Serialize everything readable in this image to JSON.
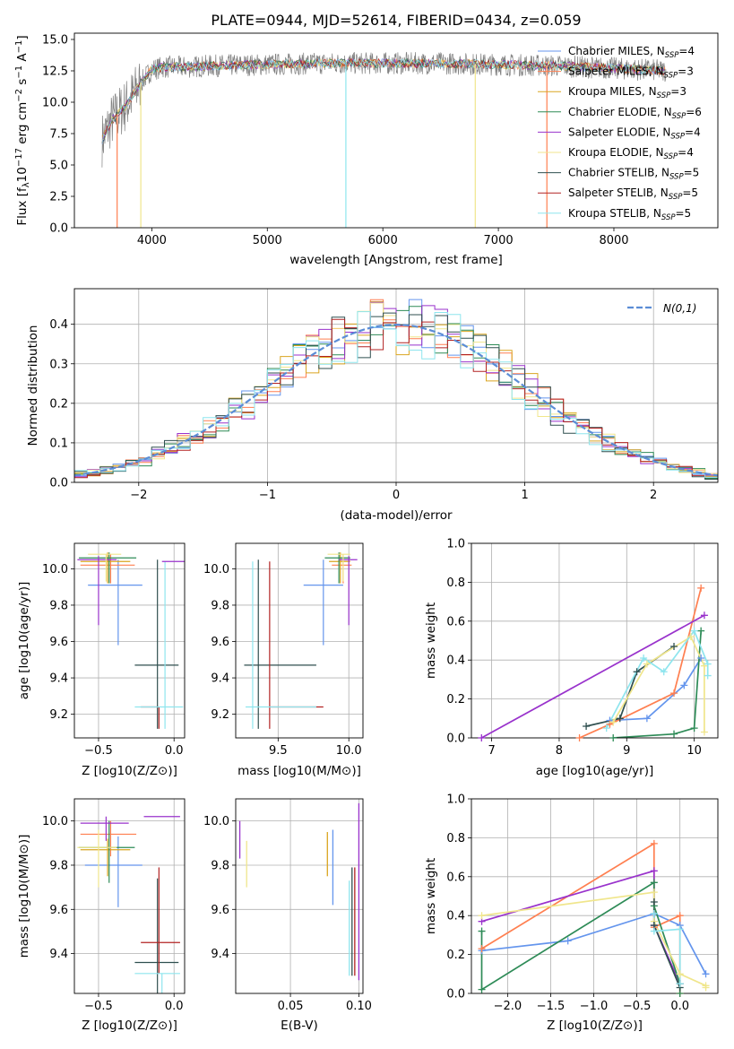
{
  "figure": {
    "title": "PLATE=0944, MJD=52614, FIBERID=0434, z=0.059",
    "models": [
      {
        "name": "Chabrier MILES, N$_{SSP}$=4",
        "label": "Chabrier MILES, N",
        "n": "=4",
        "color": "#6495ed"
      },
      {
        "name": "Salpeter MILES, N$_{SSP}$=3",
        "label": "Salpeter MILES, N",
        "n": "=3",
        "color": "#ff7f50"
      },
      {
        "name": "Kroupa MILES, N$_{SSP}$=3",
        "label": "Kroupa MILES, N",
        "n": "=3",
        "color": "#daa520"
      },
      {
        "name": "Chabrier ELODIE, N$_{SSP}$=6",
        "label": "Chabrier ELODIE, N",
        "n": "=6",
        "color": "#2e8b57"
      },
      {
        "name": "Salpeter ELODIE, N$_{SSP}$=4",
        "label": "Salpeter ELODIE, N",
        "n": "=4",
        "color": "#9932cc"
      },
      {
        "name": "Kroupa ELODIE, N$_{SSP}$=4",
        "label": "Kroupa ELODIE, N",
        "n": "=4",
        "color": "#f0e68c"
      },
      {
        "name": "Chabrier STELIB, N$_{SSP}$=5",
        "label": "Chabrier STELIB, N",
        "n": "=5",
        "color": "#2f4f4f"
      },
      {
        "name": "Salpeter STELIB, N$_{SSP}$=5",
        "label": "Salpeter STELIB, N",
        "n": "=5",
        "color": "#b22222"
      },
      {
        "name": "Kroupa STELIB, N$_{SSP}$=5",
        "label": "Kroupa STELIB, N",
        "n": "=5",
        "color": "#8ee5ee"
      }
    ],
    "ssp_sub": "SSP"
  },
  "chart_data": [
    {
      "type": "line",
      "panel": "spectrum",
      "title": "PLATE=0944, MJD=52614, FIBERID=0434, z=0.059",
      "xlabel": "wavelength [Angstrom, rest frame]",
      "ylabel": "Flux [f_λ10^-17 erg cm^-2 s^-1 A^-1]",
      "xlim": [
        3330,
        8900
      ],
      "ylim": [
        0,
        15.5
      ],
      "xticks": [
        4000,
        5000,
        6000,
        7000,
        8000
      ],
      "yticks": [
        0.0,
        2.5,
        5.0,
        7.5,
        10.0,
        12.5,
        15.0
      ],
      "ytick_labels": [
        "0.0",
        "2.5",
        "5.0",
        "7.5",
        "10.0",
        "12.5",
        "15.0"
      ],
      "data_color": "#808080",
      "x_range": [
        3570,
        8450
      ],
      "continuum": {
        "x": [
          3570,
          3650,
          3800,
          3900,
          4000,
          4100,
          4300,
          4500,
          5000,
          5500,
          6000,
          6500,
          7000,
          7500,
          8000,
          8450
        ],
        "y": [
          7.0,
          8.5,
          10.0,
          11.5,
          12.6,
          12.8,
          12.8,
          12.9,
          13.0,
          13.1,
          13.1,
          13.1,
          13.0,
          12.9,
          12.7,
          12.5
        ]
      },
      "dips": [
        {
          "x": 3700,
          "model": 1
        },
        {
          "x": 3905,
          "model": 5
        },
        {
          "x": 5680,
          "model": 8
        },
        {
          "x": 6800,
          "model": 5
        },
        {
          "x": 7420,
          "model": 1
        }
      ],
      "legend": "upper right",
      "grid": false
    },
    {
      "type": "line",
      "panel": "residual-histogram",
      "xlabel": "(data-model)/error",
      "ylabel": "Normed distribution",
      "xlim": [
        -2.5,
        2.5
      ],
      "ylim": [
        0,
        0.49
      ],
      "xticks": [
        -2,
        -1,
        0,
        1,
        2
      ],
      "xtick_labels": [
        "−2",
        "−1",
        "0",
        "1",
        "2"
      ],
      "yticks": [
        0.0,
        0.1,
        0.2,
        0.3,
        0.4
      ],
      "ytick_labels": [
        "0.0",
        "0.1",
        "0.2",
        "0.3",
        "0.4"
      ],
      "bin_width": 0.1,
      "gaussian": {
        "label": "N(0,1)",
        "color": "#5b8dd6",
        "mu": 0,
        "sigma": 1
      },
      "grid": true,
      "legend": "upper right"
    },
    {
      "type": "scatter",
      "panel": "age-vs-Z",
      "xlabel": "Z [log10(Z/Z⊙)]",
      "ylabel": "age [log10(age/yr)]",
      "xlim": [
        -0.66,
        0.07
      ],
      "ylim": [
        9.07,
        10.14
      ],
      "xticks": [
        -0.5,
        0.0
      ],
      "xtick_labels": [
        "−0.5",
        "0.0"
      ],
      "yticks": [
        9.2,
        9.4,
        9.6,
        9.8,
        10.0
      ],
      "ytick_labels": [
        "9.2",
        "9.4",
        "9.6",
        "9.8",
        "10.0"
      ],
      "points": [
        {
          "model": 0,
          "x": -0.37,
          "y": 9.91,
          "xerr": [
            0.2,
            0.16
          ],
          "yerr": [
            0.33,
            0.14
          ]
        },
        {
          "model": 1,
          "x": -0.42,
          "y": 10.02,
          "xerr": [
            0.2,
            0.16
          ],
          "yerr": [
            0.1,
            0.06
          ]
        },
        {
          "model": 2,
          "x": -0.44,
          "y": 10.04,
          "xerr": [
            0.18,
            0.15
          ],
          "yerr": [
            0.12,
            0.05
          ]
        },
        {
          "model": 3,
          "x": -0.43,
          "y": 10.06,
          "xerr": [
            0.2,
            0.18
          ],
          "yerr": [
            0.14,
            0.03
          ]
        },
        {
          "model": 4,
          "x": -0.5,
          "y": 10.05,
          "xerr": [
            0.14,
            0.12
          ],
          "yerr": [
            0.36,
            0.02
          ]
        },
        {
          "model": 5,
          "x": -0.45,
          "y": 10.08,
          "xerr": [
            0.12,
            0.1
          ],
          "yerr": [
            0.15,
            0.0
          ]
        },
        {
          "model": 6,
          "x": -0.11,
          "y": 9.47,
          "xerr": [
            0.15,
            0.14
          ],
          "yerr": [
            0.35,
            0.58
          ]
        },
        {
          "model": 7,
          "x": -0.1,
          "y": 9.24,
          "xerr": [
            0.12,
            0.0
          ],
          "yerr": [
            0.12,
            0.0
          ]
        },
        {
          "model": 8,
          "x": -0.06,
          "y": 9.24,
          "xerr": [
            0.2,
            0.12
          ],
          "yerr": [
            0.12,
            0.8
          ]
        },
        {
          "model": 4,
          "x": -0.08,
          "y": 10.04,
          "xerr": [
            0.0,
            0.15
          ],
          "yerr": [
            0.0,
            0.0
          ]
        }
      ],
      "grid": true
    },
    {
      "type": "scatter",
      "panel": "age-vs-mass",
      "xlabel": "mass [log10(M/M⊙)]",
      "ylabel": "",
      "xlim": [
        9.2,
        10.1
      ],
      "ylim": [
        9.07,
        10.14
      ],
      "xticks": [
        9.5,
        10.0
      ],
      "xtick_labels": [
        "9.5",
        "10.0"
      ],
      "yticks": [
        9.2,
        9.4,
        9.6,
        9.8,
        10.0
      ],
      "ytick_labels": [
        "9.2",
        "9.4",
        "9.6",
        "9.8",
        "10.0"
      ],
      "points": [
        {
          "model": 0,
          "x": 9.82,
          "y": 9.91,
          "xerr": [
            0.14,
            0.14
          ],
          "yerr": [
            0.33,
            0.14
          ]
        },
        {
          "model": 1,
          "x": 9.96,
          "y": 10.02,
          "xerr": [
            0.08,
            0.06
          ],
          "yerr": [
            0.1,
            0.06
          ]
        },
        {
          "model": 2,
          "x": 9.94,
          "y": 10.04,
          "xerr": [
            0.08,
            0.07
          ],
          "yerr": [
            0.12,
            0.05
          ]
        },
        {
          "model": 3,
          "x": 9.93,
          "y": 10.06,
          "xerr": [
            0.1,
            0.08
          ],
          "yerr": [
            0.14,
            0.03
          ]
        },
        {
          "model": 4,
          "x": 10.0,
          "y": 10.05,
          "xerr": [
            0.07,
            0.06
          ],
          "yerr": [
            0.36,
            0.02
          ]
        },
        {
          "model": 5,
          "x": 9.96,
          "y": 10.08,
          "xerr": [
            0.11,
            0.05
          ],
          "yerr": [
            0.15,
            0.0
          ]
        },
        {
          "model": 6,
          "x": 9.36,
          "y": 9.47,
          "xerr": [
            0.1,
            0.41
          ],
          "yerr": [
            0.35,
            0.58
          ]
        },
        {
          "model": 7,
          "x": 9.44,
          "y": 9.24,
          "xerr": [
            0.0,
            0.38
          ],
          "yerr": [
            0.12,
            0.8
          ]
        },
        {
          "model": 8,
          "x": 9.32,
          "y": 9.24,
          "xerr": [
            0.05,
            0.45
          ],
          "yerr": [
            0.12,
            0.8
          ]
        }
      ],
      "grid": true
    },
    {
      "type": "line",
      "panel": "mass-weight-vs-age",
      "xlabel": "age [log10(age/yr)]",
      "ylabel": "mass weight",
      "xlim": [
        6.7,
        10.35
      ],
      "ylim": [
        0,
        1.0
      ],
      "xticks": [
        7,
        8,
        9,
        10
      ],
      "yticks": [
        0.0,
        0.2,
        0.4,
        0.6,
        0.8,
        1.0
      ],
      "ytick_labels": [
        "0.0",
        "0.2",
        "0.4",
        "0.6",
        "0.8",
        "1.0"
      ],
      "series": [
        {
          "model": 0,
          "x": [
            8.75,
            9.3,
            9.85,
            10.1
          ],
          "y": [
            0.09,
            0.1,
            0.27,
            0.41
          ]
        },
        {
          "model": 1,
          "x": [
            8.3,
            8.75,
            9.7,
            10.1
          ],
          "y": [
            0.0,
            0.07,
            0.23,
            0.77
          ]
        },
        {
          "model": 4,
          "x": [
            6.85,
            10.15
          ],
          "y": [
            0.0,
            0.63
          ]
        },
        {
          "model": 3,
          "x": [
            8.8,
            9.7,
            10.0,
            10.1
          ],
          "y": [
            0.0,
            0.02,
            0.05,
            0.55
          ]
        },
        {
          "model": 6,
          "x": [
            8.4,
            8.9,
            9.15,
            9.7
          ],
          "y": [
            0.06,
            0.1,
            0.34,
            0.47
          ]
        },
        {
          "model": 5,
          "x": [
            8.8,
            9.3,
            9.95,
            10.15,
            10.15
          ],
          "y": [
            0.08,
            0.38,
            0.52,
            0.37,
            0.03
          ]
        },
        {
          "model": 8,
          "x": [
            8.7,
            9.25,
            9.55,
            10.0,
            10.2,
            10.2
          ],
          "y": [
            0.05,
            0.41,
            0.34,
            0.55,
            0.38,
            0.32
          ]
        }
      ],
      "grid": true
    },
    {
      "type": "scatter",
      "panel": "mass-vs-Z",
      "xlabel": "Z [log10(Z/Z⊙)]",
      "ylabel": "mass [log10(M/M⊙)]",
      "xlim": [
        -0.66,
        0.07
      ],
      "ylim": [
        9.22,
        10.1
      ],
      "xticks": [
        -0.5,
        0.0
      ],
      "xtick_labels": [
        "−0.5",
        "0.0"
      ],
      "yticks": [
        9.4,
        9.6,
        9.8,
        10.0
      ],
      "ytick_labels": [
        "9.4",
        "9.6",
        "9.8",
        "10.0"
      ],
      "points": [
        {
          "model": 0,
          "x": -0.37,
          "y": 9.8,
          "xerr": [
            0.22,
            0.16
          ],
          "yerr": [
            0.19,
            0.13
          ]
        },
        {
          "model": 1,
          "x": -0.42,
          "y": 9.94,
          "xerr": [
            0.2,
            0.17
          ],
          "yerr": [
            0.1,
            0.06
          ]
        },
        {
          "model": 2,
          "x": -0.44,
          "y": 9.87,
          "xerr": [
            0.18,
            0.15
          ],
          "yerr": [
            0.12,
            0.05
          ]
        },
        {
          "model": 3,
          "x": -0.43,
          "y": 9.88,
          "xerr": [
            0.2,
            0.17
          ],
          "yerr": [
            0.16,
            0.12
          ]
        },
        {
          "model": 4,
          "x": -0.45,
          "y": 9.99,
          "xerr": [
            0.17,
            0.15
          ],
          "yerr": [
            0.08,
            0.03
          ]
        },
        {
          "model": 5,
          "x": -0.5,
          "y": 9.88,
          "xerr": [
            0.14,
            0.12
          ],
          "yerr": [
            0.18,
            0.08
          ]
        },
        {
          "model": 6,
          "x": -0.11,
          "y": 9.36,
          "xerr": [
            0.15,
            0.14
          ],
          "yerr": [
            0.14,
            0.38
          ]
        },
        {
          "model": 7,
          "x": -0.1,
          "y": 9.45,
          "xerr": [
            0.12,
            0.14
          ],
          "yerr": [
            0.14,
            0.34
          ]
        },
        {
          "model": 8,
          "x": -0.08,
          "y": 9.31,
          "xerr": [
            0.18,
            0.12
          ],
          "yerr": [
            0.14,
            0.0
          ]
        },
        {
          "model": 4,
          "x": -0.2,
          "y": 10.02,
          "xerr": [
            0.0,
            0.24
          ],
          "yerr": [
            0.0,
            0.0
          ]
        }
      ],
      "grid": true
    },
    {
      "type": "scatter",
      "panel": "mass-vs-EBV",
      "xlabel": "E(B-V)",
      "ylabel": "",
      "xlim": [
        0.01,
        0.103
      ],
      "ylim": [
        9.22,
        10.1
      ],
      "xticks": [
        0.05,
        0.1
      ],
      "xtick_labels": [
        "0.05",
        "0.10"
      ],
      "yticks": [
        9.4,
        9.6,
        9.8,
        10.0
      ],
      "ytick_labels": [
        "9.4",
        "9.6",
        "9.8",
        "10.0"
      ],
      "vlines": [
        {
          "model": 4,
          "x": 0.013,
          "y": [
            9.83,
            10.0
          ]
        },
        {
          "model": 5,
          "x": 0.018,
          "y": [
            9.7,
            9.91
          ]
        },
        {
          "model": 2,
          "x": 0.077,
          "y": [
            9.75,
            9.95
          ]
        },
        {
          "model": 0,
          "x": 0.081,
          "y": [
            9.62,
            9.96
          ]
        },
        {
          "model": 8,
          "x": 0.093,
          "y": [
            9.3,
            9.73
          ]
        },
        {
          "model": 6,
          "x": 0.095,
          "y": [
            9.3,
            9.79
          ]
        },
        {
          "model": 7,
          "x": 0.097,
          "y": [
            9.3,
            9.79
          ]
        },
        {
          "model": 4,
          "x": 0.1,
          "y": [
            9.28,
            10.08
          ]
        }
      ],
      "grid": true
    },
    {
      "type": "line",
      "panel": "mass-weight-vs-Z",
      "xlabel": "Z [log10(Z/Z⊙)]",
      "ylabel": "mass weight",
      "xlim": [
        -2.42,
        0.44
      ],
      "ylim": [
        0,
        1.0
      ],
      "xticks": [
        -2.0,
        -1.5,
        -1.0,
        -0.5,
        0.0
      ],
      "xtick_labels": [
        "−2.0",
        "−1.5",
        "−1.0",
        "−0.5",
        "0.0"
      ],
      "yticks": [
        0.0,
        0.2,
        0.4,
        0.6,
        0.8,
        1.0
      ],
      "ytick_labels": [
        "0.0",
        "0.2",
        "0.4",
        "0.6",
        "0.8",
        "1.0"
      ],
      "series": [
        {
          "model": 0,
          "x": [
            -2.3,
            -1.3,
            -0.3,
            0.0,
            0.3
          ],
          "y": [
            0.22,
            0.27,
            0.41,
            0.35,
            0.1
          ]
        },
        {
          "model": 1,
          "x": [
            -2.3,
            -0.3,
            -0.3,
            0.0,
            0.0
          ],
          "y": [
            0.23,
            0.77,
            0.34,
            0.4,
            0.0
          ]
        },
        {
          "model": 4,
          "x": [
            -2.3,
            -0.3,
            -0.3,
            0.0
          ],
          "y": [
            0.37,
            0.63,
            0.35,
            0.05
          ]
        },
        {
          "model": 3,
          "x": [
            -2.3,
            -2.3,
            -0.3,
            -0.3,
            0.0,
            0.0
          ],
          "y": [
            0.32,
            0.02,
            0.57,
            0.45,
            0.05,
            0.0
          ]
        },
        {
          "model": 5,
          "x": [
            -2.3,
            -0.3,
            -0.3,
            0.0,
            0.3,
            0.3
          ],
          "y": [
            0.4,
            0.52,
            0.37,
            0.1,
            0.04,
            0.03
          ]
        },
        {
          "model": 6,
          "x": [
            -0.3,
            -0.3,
            0.0
          ],
          "y": [
            0.47,
            0.35,
            0.03
          ]
        },
        {
          "model": 8,
          "x": [
            -0.3,
            -0.3,
            0.0,
            0.0
          ],
          "y": [
            0.41,
            0.32,
            0.33,
            0.05
          ]
        }
      ],
      "grid": true
    }
  ]
}
